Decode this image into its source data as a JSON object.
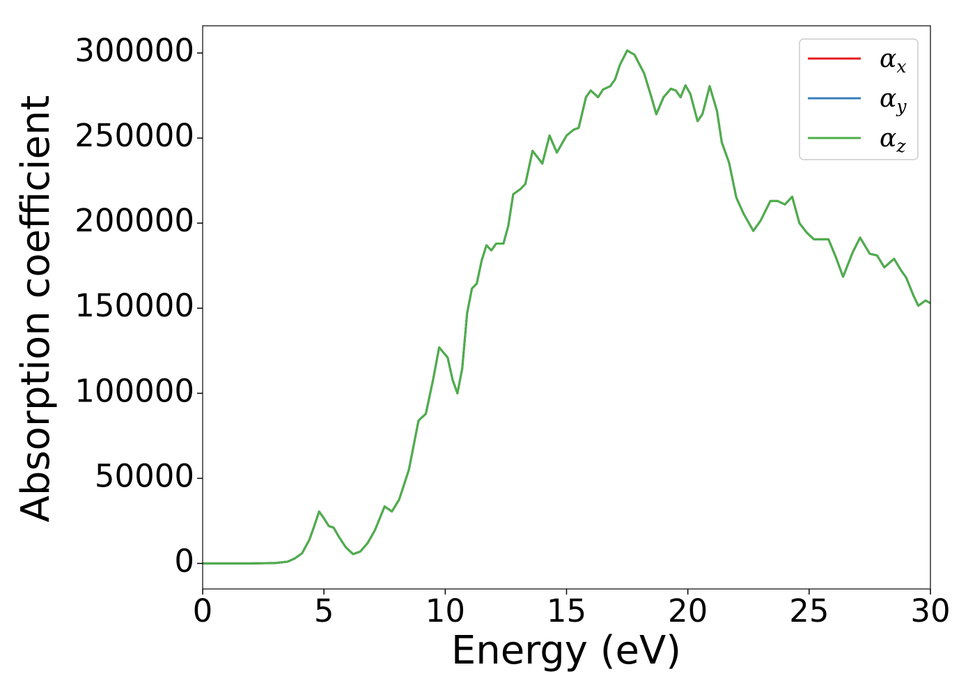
{
  "chart_data": {
    "type": "line",
    "x_label": "Energy (eV)",
    "y_label": "Absorption coefficient",
    "x": [
      0,
      1,
      2,
      3,
      3.5,
      3.8,
      4.1,
      4.4,
      4.6,
      4.8,
      5.0,
      5.2,
      5.4,
      5.6,
      5.9,
      6.2,
      6.5,
      6.8,
      7.1,
      7.5,
      7.8,
      8.1,
      8.5,
      8.9,
      9.2,
      9.5,
      9.75,
      10.1,
      10.3,
      10.5,
      10.7,
      10.9,
      11.1,
      11.3,
      11.5,
      11.7,
      11.9,
      12.1,
      12.4,
      12.6,
      12.8,
      13.1,
      13.3,
      13.6,
      14.0,
      14.3,
      14.6,
      15.0,
      15.3,
      15.5,
      15.8,
      16.0,
      16.3,
      16.5,
      16.8,
      17.0,
      17.2,
      17.5,
      17.8,
      18.2,
      18.5,
      18.7,
      19.0,
      19.3,
      19.5,
      19.7,
      19.9,
      20.1,
      20.4,
      20.6,
      20.9,
      21.2,
      21.4,
      21.7,
      22.0,
      22.3,
      22.7,
      23.0,
      23.4,
      23.7,
      24.0,
      24.3,
      24.6,
      24.9,
      25.2,
      25.8,
      26.1,
      26.4,
      26.8,
      27.1,
      27.5,
      27.8,
      28.1,
      28.5,
      28.8,
      29.0,
      29.3,
      29.5,
      29.8,
      30.0
    ],
    "series": [
      {
        "name": "αx",
        "color": "#e41a1c",
        "values": [
          0,
          0,
          0,
          300,
          1000,
          3000,
          6000,
          14000,
          22000,
          30500,
          26500,
          22000,
          21000,
          16000,
          9500,
          5500,
          7000,
          12000,
          19500,
          33500,
          30500,
          37500,
          55000,
          84000,
          88000,
          108000,
          127000,
          121000,
          108000,
          100000,
          114500,
          147000,
          161500,
          164500,
          178000,
          187000,
          184000,
          188000,
          188000,
          198500,
          217000,
          220000,
          223000,
          242500,
          235000,
          251500,
          241500,
          251500,
          255000,
          256000,
          274000,
          278000,
          274000,
          278500,
          280500,
          284500,
          293000,
          301500,
          299000,
          288000,
          274000,
          264000,
          274000,
          279000,
          278000,
          274000,
          281000,
          276000,
          260000,
          264000,
          280500,
          266000,
          247500,
          235500,
          215000,
          205500,
          195500,
          201500,
          213000,
          213000,
          211000,
          215500,
          200000,
          194500,
          190500,
          190500,
          180000,
          168500,
          183000,
          191500,
          182000,
          181000,
          174000,
          179000,
          172000,
          168000,
          157500,
          151500,
          154500,
          153000
        ]
      },
      {
        "name": "αy",
        "color": "#377eb8",
        "values": [
          0,
          0,
          0,
          300,
          1000,
          3000,
          6000,
          14000,
          22000,
          30500,
          26500,
          22000,
          21000,
          16000,
          9500,
          5500,
          7000,
          12000,
          19500,
          33500,
          30500,
          37500,
          55000,
          84000,
          88000,
          108000,
          127000,
          121000,
          108000,
          100000,
          114500,
          147000,
          161500,
          164500,
          178000,
          187000,
          184000,
          188000,
          188000,
          198500,
          217000,
          220000,
          223000,
          242500,
          235000,
          251500,
          241500,
          251500,
          255000,
          256000,
          274000,
          278000,
          274000,
          278500,
          280500,
          284500,
          293000,
          301500,
          299000,
          288000,
          274000,
          264000,
          274000,
          279000,
          278000,
          274000,
          281000,
          276000,
          260000,
          264000,
          280500,
          266000,
          247500,
          235500,
          215000,
          205500,
          195500,
          201500,
          213000,
          213000,
          211000,
          215500,
          200000,
          194500,
          190500,
          190500,
          180000,
          168500,
          183000,
          191500,
          182000,
          181000,
          174000,
          179000,
          172000,
          168000,
          157500,
          151500,
          154500,
          153000
        ]
      },
      {
        "name": "αz",
        "color": "#4daf4a",
        "values": [
          0,
          0,
          0,
          300,
          1000,
          3000,
          6000,
          14000,
          22000,
          30500,
          26500,
          22000,
          21000,
          16000,
          9500,
          5500,
          7000,
          12000,
          19500,
          33500,
          30500,
          37500,
          55000,
          84000,
          88000,
          108000,
          127000,
          121000,
          108000,
          100000,
          114500,
          147000,
          161500,
          164500,
          178000,
          187000,
          184000,
          188000,
          188000,
          198500,
          217000,
          220000,
          223000,
          242500,
          235000,
          251500,
          241500,
          251500,
          255000,
          256000,
          274000,
          278000,
          274000,
          278500,
          280500,
          284500,
          293000,
          301500,
          299000,
          288000,
          274000,
          264000,
          274000,
          279000,
          278000,
          274000,
          281000,
          276000,
          260000,
          264000,
          280500,
          266000,
          247500,
          235500,
          215000,
          205500,
          195500,
          201500,
          213000,
          213000,
          211000,
          215500,
          200000,
          194500,
          190500,
          190500,
          180000,
          168500,
          183000,
          191500,
          182000,
          181000,
          174000,
          179000,
          172000,
          168000,
          157500,
          151500,
          154500,
          153000
        ]
      }
    ],
    "xlim": [
      0,
      30
    ],
    "xticks": [
      0,
      5,
      10,
      15,
      20,
      25,
      30
    ],
    "ylim": [
      -15000,
      316000
    ],
    "yticks": [
      0,
      50000,
      100000,
      150000,
      200000,
      250000,
      300000
    ],
    "legend": "upper right",
    "grid": false
  }
}
